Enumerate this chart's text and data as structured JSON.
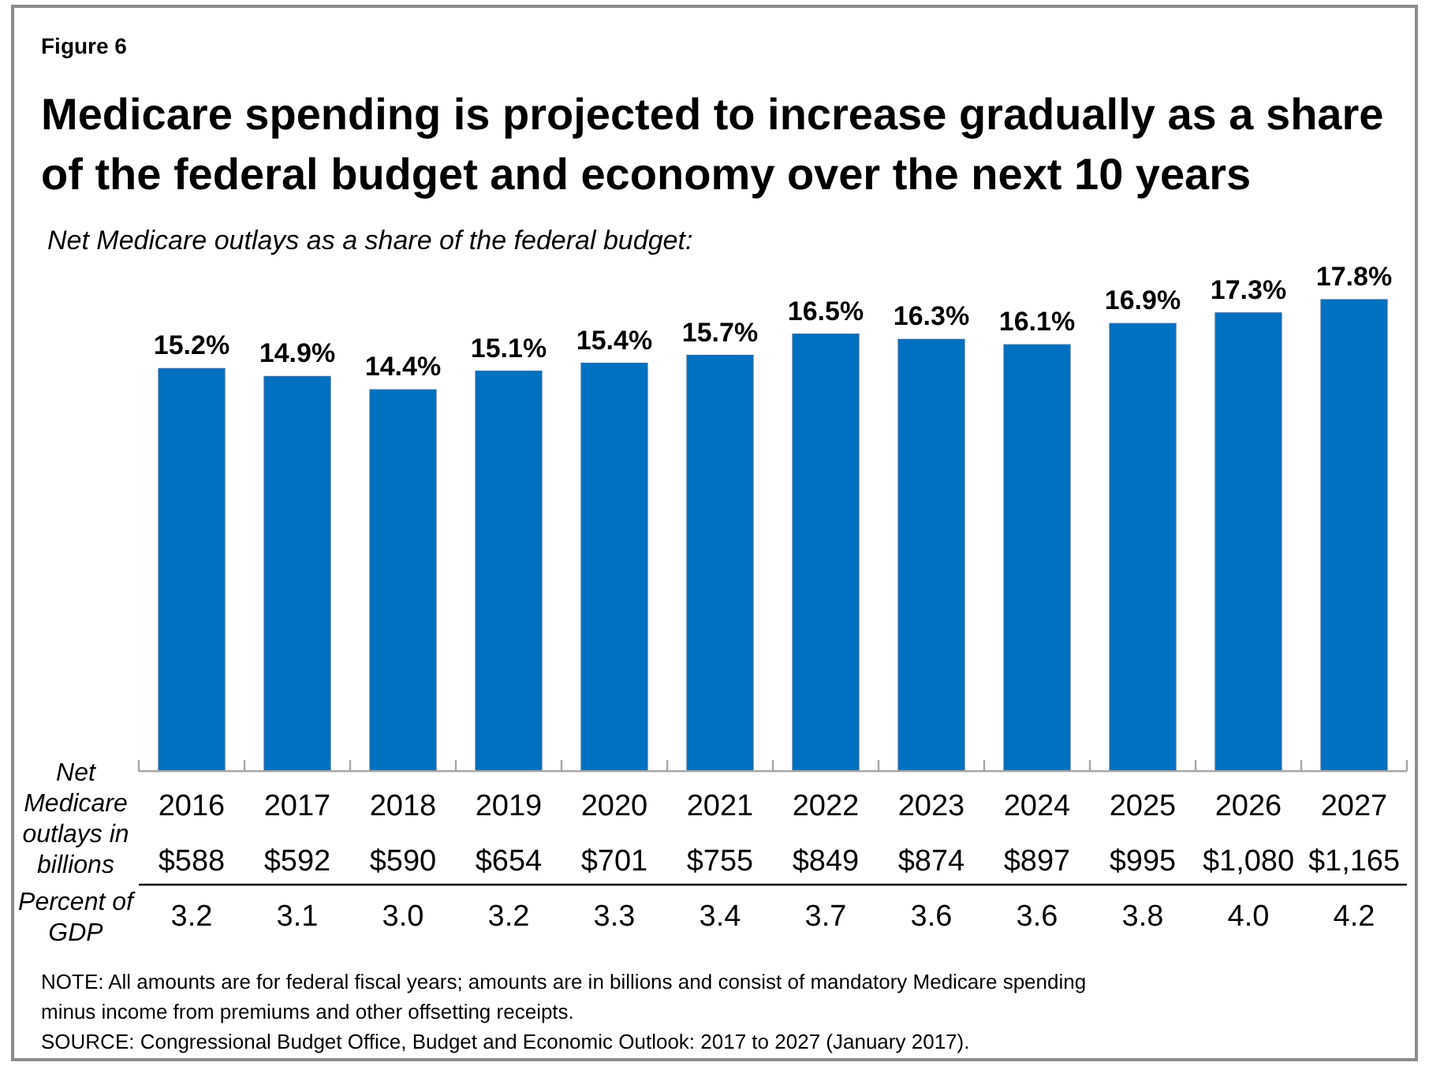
{
  "chart_data": {
    "type": "bar",
    "title": "Medicare spending is projected to increase gradually as a share of the federal budget and economy over the next 10 years",
    "subtitle": "Net Medicare outlays as a share of the federal budget:",
    "xlabel": "Net Medicare outlays in billions",
    "categories": [
      "2016",
      "2017",
      "2018",
      "2019",
      "2020",
      "2021",
      "2022",
      "2023",
      "2024",
      "2025",
      "2026",
      "2027"
    ],
    "values": [
      15.2,
      14.9,
      14.4,
      15.1,
      15.4,
      15.7,
      16.5,
      16.3,
      16.1,
      16.9,
      17.3,
      17.8
    ],
    "value_labels": [
      "15.2%",
      "14.9%",
      "14.4%",
      "15.1%",
      "15.4%",
      "15.7%",
      "16.5%",
      "16.3%",
      "16.1%",
      "16.9%",
      "17.3%",
      "17.8%"
    ],
    "color": "#0070c0",
    "annotations": [
      "Figure 6",
      "$588",
      "$592",
      "$590",
      "$654",
      "$701",
      "$755",
      "$849",
      "$874",
      "$897",
      "$995",
      "$1,080",
      "$1,165",
      "Percent of GDP",
      "3.2",
      "3.1",
      "3.0",
      "3.2",
      "3.3",
      "3.4",
      "3.7",
      "3.6",
      "3.6",
      "3.8",
      "4.0",
      "4.2",
      "NOTE: All amounts are for federal fiscal years; amounts are in billions and consist of mandatory Medicare spending minus income from premiums and other offsetting receipts.",
      "SOURCE: Congressional Budget Office, Budget and Economic Outlook: 2017 to 2027 (January 2017)."
    ]
  }
}
